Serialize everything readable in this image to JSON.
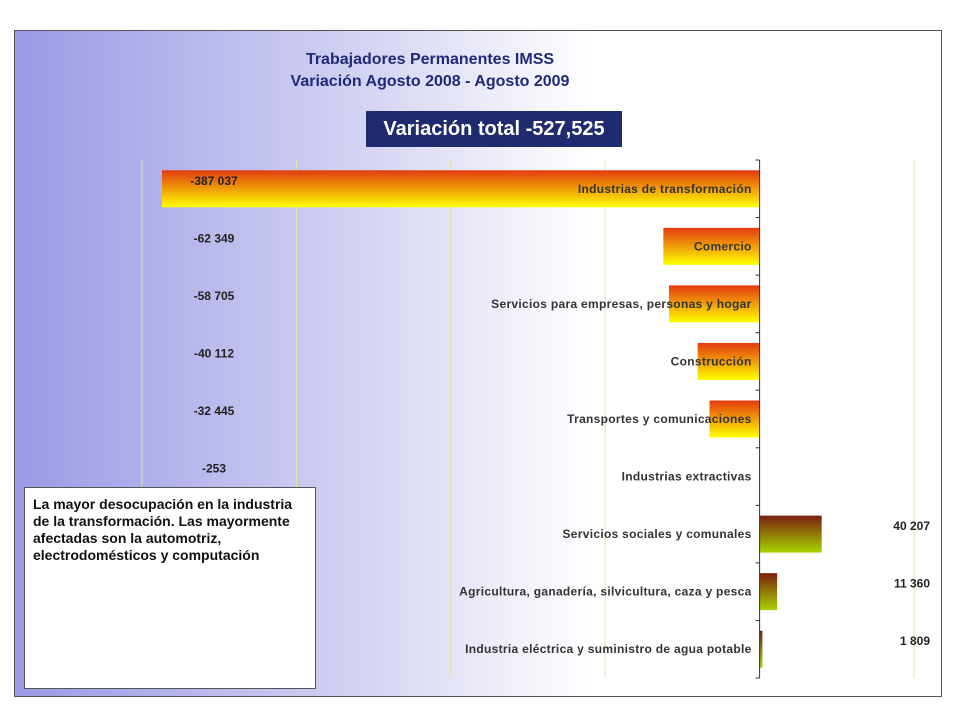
{
  "title_line1": "Trabajadores Permanentes IMSS",
  "title_line2": "Variación Agosto 2008 - Agosto 2009",
  "total_label": "Variación total  -527,525",
  "note_text": "La mayor desocupación en la industria de la transformación. Las mayormente afectadas son la automotriz, electrodomésticos y computación",
  "colors": {
    "negative_top": "#e23b10",
    "negative_bottom": "#ffff00",
    "positive_top": "#7a1e10",
    "positive_bottom": "#a8d400",
    "title": "#1f2a78",
    "total_box": "#1e2b6e"
  },
  "chart_data": {
    "type": "bar",
    "orientation": "horizontal",
    "categories": [
      "Industrias de transformación",
      "Comercio",
      "Servicios para empresas, personas y hogar",
      "Construcción",
      "Transportes y comunicaciones",
      "Industrias extractivas",
      "Servicios sociales y comunales",
      "Agricultura, ganadería, silvicultura, caza y pesca",
      "Industria eléctrica y suministro de agua potable"
    ],
    "values": [
      -387037,
      -62349,
      -58705,
      -40112,
      -32445,
      -253,
      40207,
      11360,
      1809
    ],
    "value_labels": [
      "-387 037",
      "-62 349",
      "-58 705",
      "-40 112",
      "-32 445",
      "-253",
      "40 207",
      "11 360",
      "1 809"
    ],
    "xlim": [
      -400000,
      100000
    ],
    "grid": true
  }
}
